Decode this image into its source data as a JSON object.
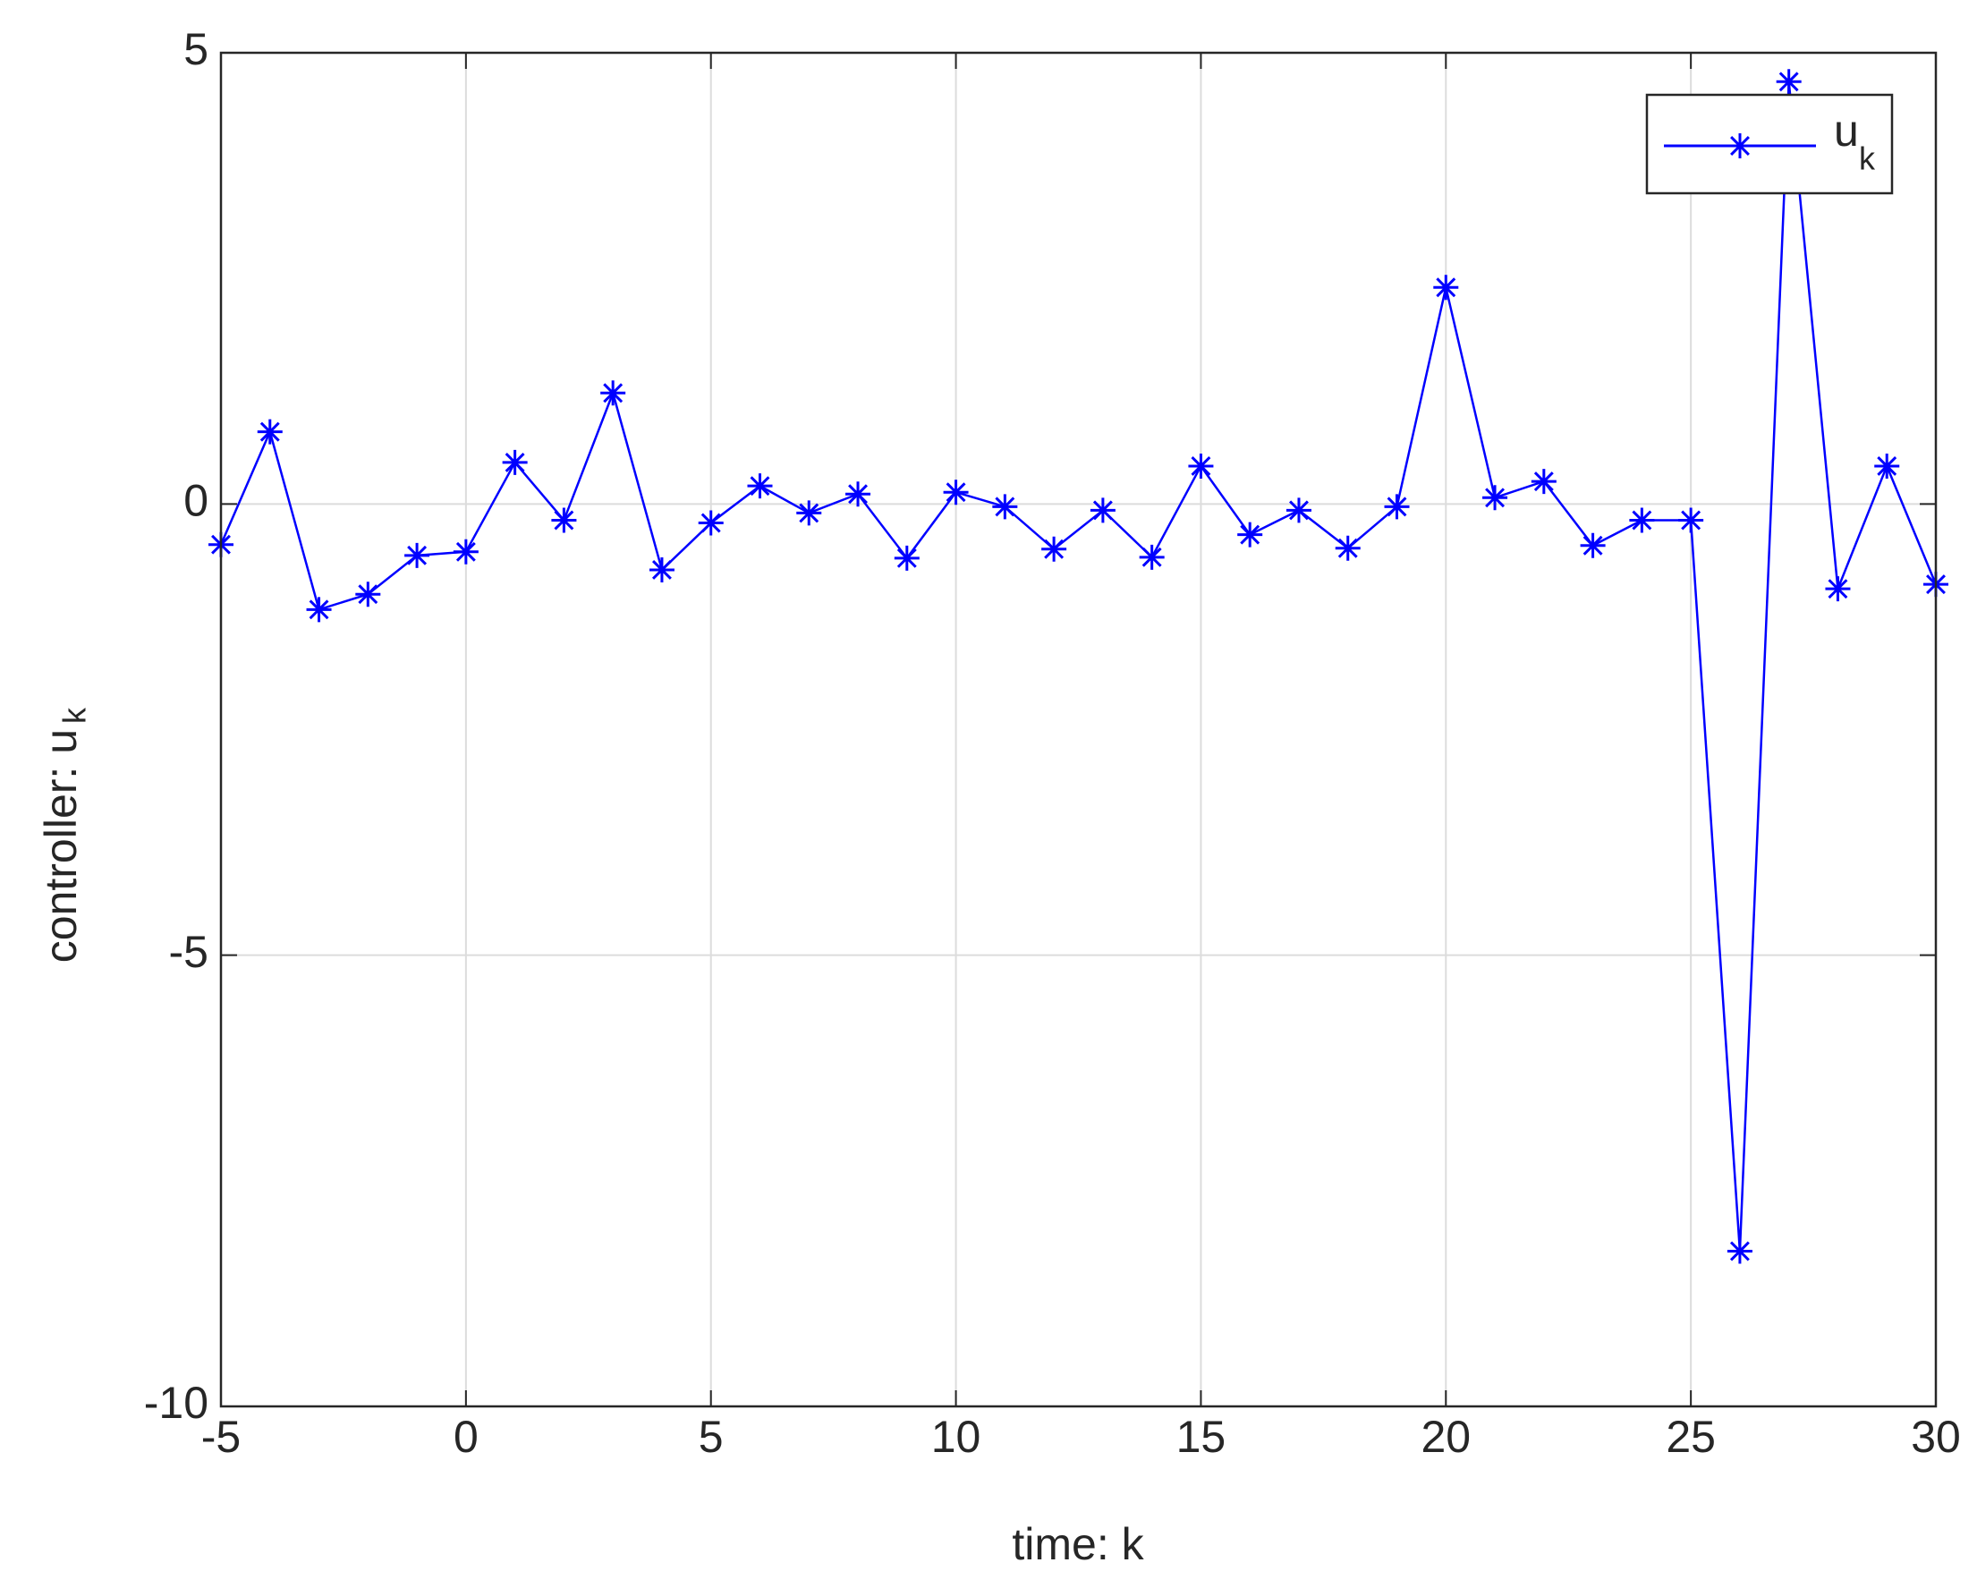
{
  "chart_data": {
    "type": "line",
    "x_label": "time: k",
    "y_label": "controller: u",
    "y_label_subscript": "k",
    "x": [
      -5,
      -4,
      -3,
      -2,
      -1,
      0,
      1,
      2,
      3,
      4,
      5,
      6,
      7,
      8,
      9,
      10,
      11,
      12,
      13,
      14,
      15,
      16,
      17,
      18,
      19,
      20,
      21,
      22,
      23,
      24,
      25,
      26,
      27,
      28,
      29,
      30
    ],
    "series": [
      {
        "name": "u",
        "name_subscript": "k",
        "color": "#0000ff",
        "marker": "asterisk",
        "values": [
          -0.45,
          0.8,
          -1.17,
          -1.0,
          -0.57,
          -0.53,
          0.46,
          -0.18,
          1.23,
          -0.73,
          -0.21,
          0.2,
          -0.1,
          0.11,
          -0.6,
          0.13,
          -0.03,
          -0.5,
          -0.07,
          -0.59,
          0.42,
          -0.34,
          -0.07,
          -0.49,
          -0.03,
          2.4,
          0.07,
          0.25,
          -0.46,
          -0.18,
          -0.18,
          -8.28,
          4.68,
          -0.94,
          0.42,
          -0.89
        ]
      }
    ],
    "xlim": [
      -5,
      30
    ],
    "ylim": [
      -10,
      5
    ],
    "xticks": [
      -5,
      0,
      5,
      10,
      15,
      20,
      25,
      30
    ],
    "yticks": [
      -10,
      -5,
      0,
      5
    ],
    "grid": true,
    "legend": "upper right"
  }
}
